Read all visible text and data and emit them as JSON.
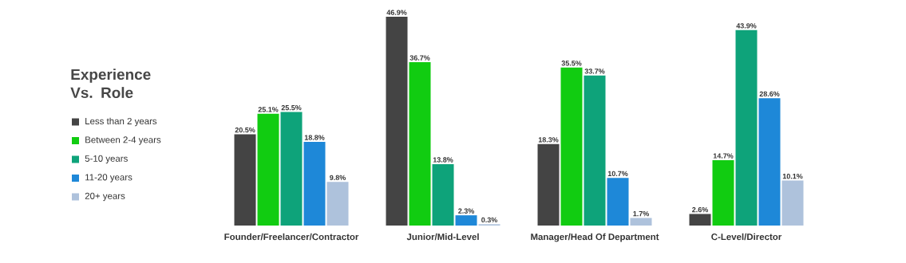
{
  "chart_data": {
    "type": "bar",
    "title": "Experience Vs. Role",
    "categories": [
      "Founder/Freelancer/Contractor",
      "Junior/Mid-Level",
      "Manager/Head Of Department",
      "C-Level/Director"
    ],
    "series": [
      {
        "name": "Less than 2 years",
        "color": "#444444",
        "values": [
          20.5,
          46.9,
          18.3,
          2.6
        ],
        "value_labels": [
          "20.5%",
          "46.9%",
          "18.3%",
          "2.6%"
        ]
      },
      {
        "name": "Between 2-4 years",
        "color": "#11cc11",
        "values": [
          25.1,
          36.7,
          35.5,
          14.7
        ],
        "value_labels": [
          "25.1%",
          "36.7%",
          "35.5%",
          "14.7%"
        ]
      },
      {
        "name": "5-10 years",
        "color": "#0ea37a",
        "values": [
          25.5,
          13.8,
          33.7,
          43.9
        ],
        "value_labels": [
          "25.5%",
          "13.8%",
          "33.7%",
          "43.9%"
        ]
      },
      {
        "name": "11-20 years",
        "color": "#1e88d8",
        "values": [
          18.8,
          2.3,
          10.7,
          28.6
        ],
        "value_labels": [
          "18.8%",
          "2.3%",
          "10.7%",
          "28.6%"
        ]
      },
      {
        "name": "20+ years",
        "color": "#aec2dc",
        "values": [
          9.8,
          0.3,
          1.7,
          10.1
        ],
        "value_labels": [
          "9.8%",
          "0.3%",
          "1.7%",
          "10.1%"
        ]
      }
    ],
    "legend": "left"
  }
}
